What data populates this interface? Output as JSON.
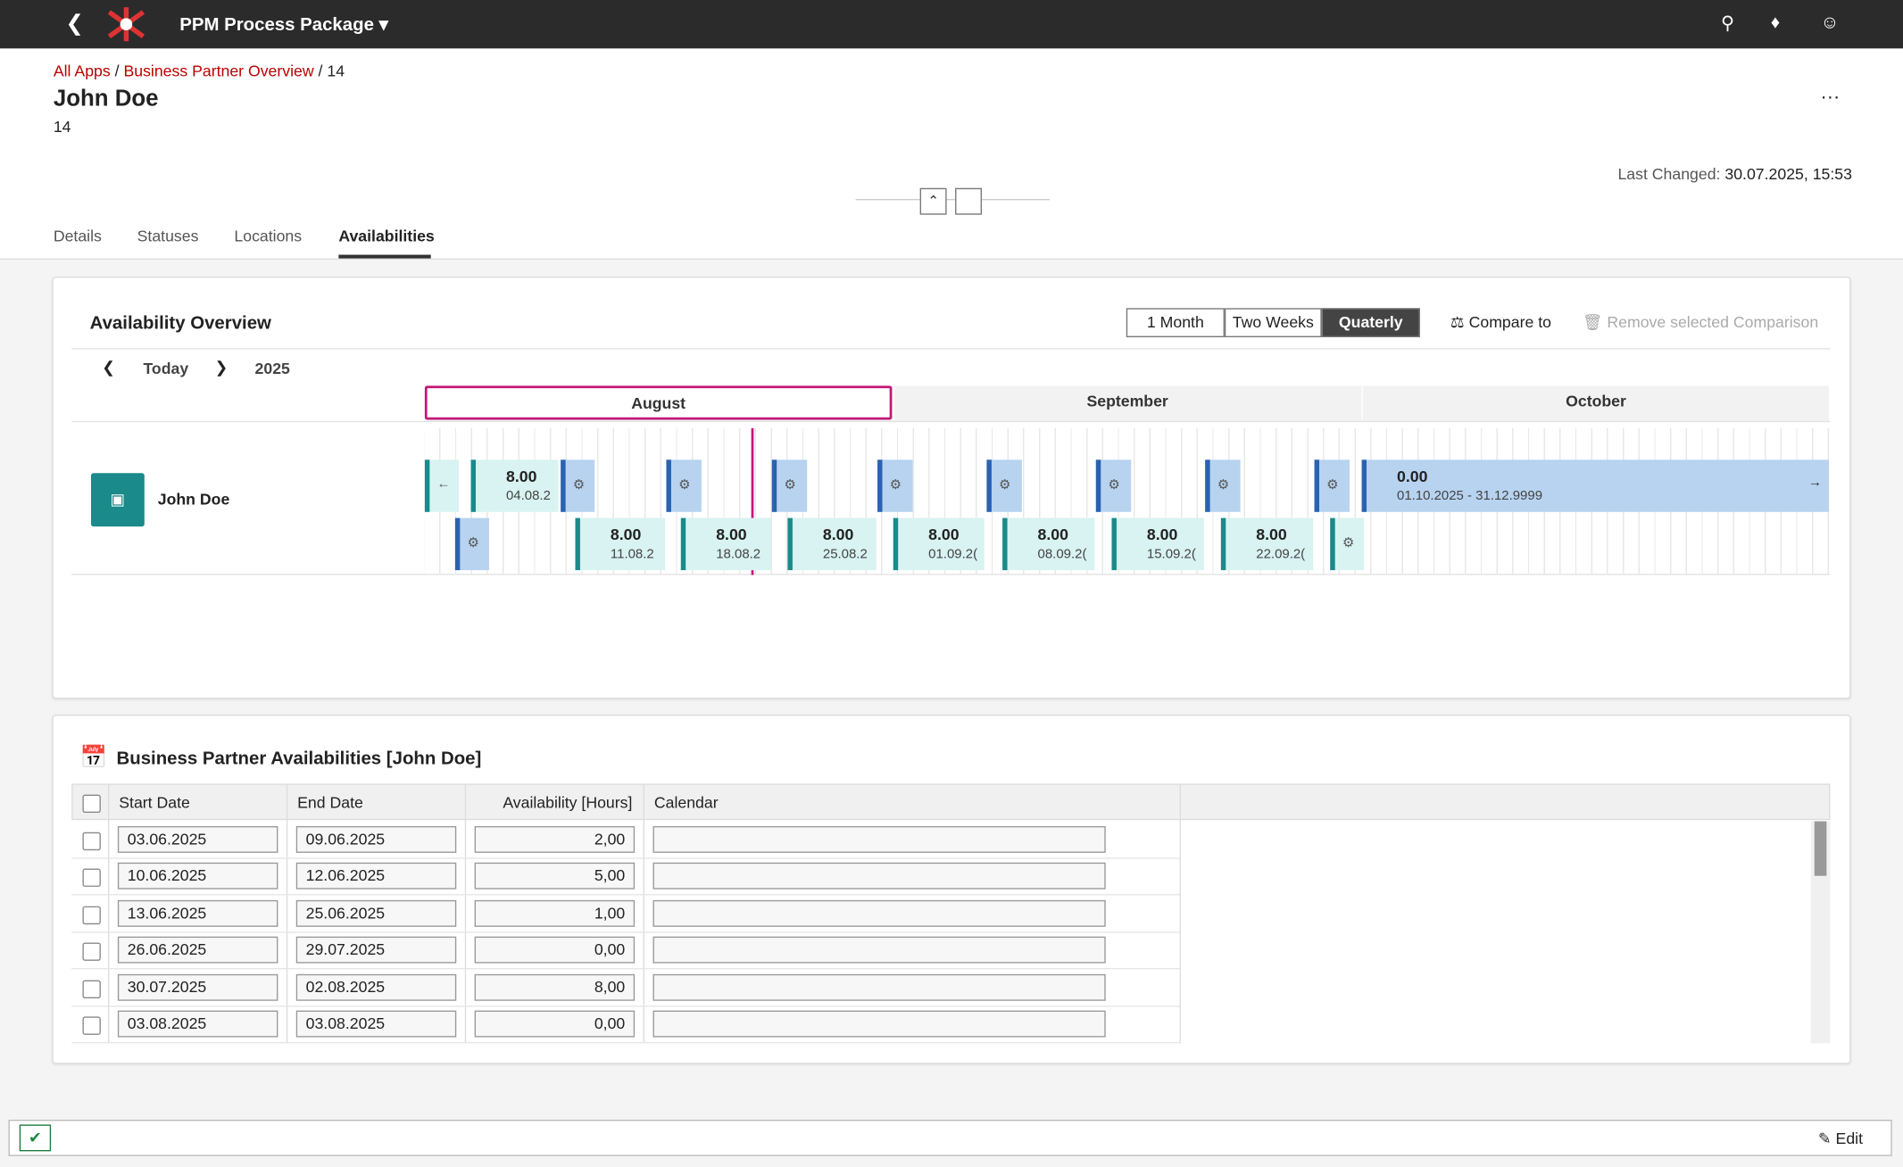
{
  "header": {
    "app_title": "PPM Process Package"
  },
  "breadcrumb": [
    "All Apps",
    "Business Partner Overview",
    "14"
  ],
  "object": {
    "title": "John Doe",
    "id": "14",
    "last_changed_label": "Last Changed:",
    "last_changed": "30.07.2025, 15:53"
  },
  "tabs": [
    "Details",
    "Statuses",
    "Locations",
    "Availabilities"
  ],
  "overview": {
    "title": "Availability Overview",
    "views": [
      "1 Month",
      "Two Weeks",
      "Quaterly"
    ],
    "compare": "Compare to",
    "remove": "Remove selected Comparison",
    "today": "Today",
    "year": "2025",
    "months": [
      "August",
      "September",
      "October"
    ],
    "resource": "John Doe",
    "bars": [
      {
        "value": "8.00",
        "date": "04.08.2"
      },
      {
        "value": "8.00",
        "date": "11.08.2"
      },
      {
        "value": "8.00",
        "date": "18.08.2"
      },
      {
        "value": "8.00",
        "date": "25.08.2"
      },
      {
        "value": "8.00",
        "date": "01.09.2("
      },
      {
        "value": "8.00",
        "date": "08.09.2("
      },
      {
        "value": "8.00",
        "date": "15.09.2("
      },
      {
        "value": "8.00",
        "date": "22.09.2("
      },
      {
        "value": "0.00",
        "date": "01.10.2025 - 31.12.9999"
      }
    ]
  },
  "table": {
    "title": "Business Partner Availabilities [John Doe]",
    "columns": [
      "Start Date",
      "End Date",
      "Availability [Hours]",
      "Calendar"
    ],
    "rows": [
      [
        "03.06.2025",
        "09.06.2025",
        "2,00"
      ],
      [
        "10.06.2025",
        "12.06.2025",
        "5,00"
      ],
      [
        "13.06.2025",
        "25.06.2025",
        "1,00"
      ],
      [
        "26.06.2025",
        "29.07.2025",
        "0,00"
      ],
      [
        "30.07.2025",
        "02.08.2025",
        "8,00"
      ],
      [
        "03.08.2025",
        "03.08.2025",
        "0,00"
      ]
    ]
  },
  "footer": {
    "edit": "Edit"
  }
}
